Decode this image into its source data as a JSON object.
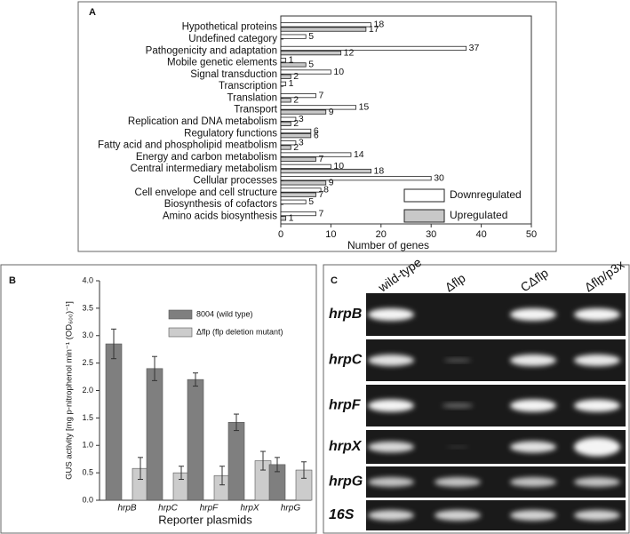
{
  "chart_data": [
    {
      "type": "bar",
      "horizontal": true,
      "panel_label": "A",
      "categories": [
        "Hypothetical proteins",
        "Undefined category",
        "Pathogenicity and adaptation",
        "Mobile genetic elements",
        "Signal transduction",
        "Transcription",
        "Translation",
        "Transport",
        "Replication and DNA metabolism",
        "Regulatory functions",
        "Fatty acid and phospholipid meatbolism",
        "Energy and carbon metabolism",
        "Central intermediary metabolism",
        "Cellular processes",
        "Cell envelope and cell structure",
        "Biosynthesis of cofactors",
        "Amino acids biosynthesis"
      ],
      "series": [
        {
          "name": "Downregulated",
          "color": "#ffffff",
          "values": [
            18,
            5,
            37,
            1,
            10,
            1,
            7,
            15,
            3,
            6,
            3,
            14,
            10,
            30,
            8,
            5,
            7
          ]
        },
        {
          "name": "Upregulated",
          "color": "#c8c8c8",
          "values": [
            17,
            null,
            12,
            5,
            2,
            null,
            2,
            9,
            2,
            6,
            2,
            7,
            18,
            9,
            7,
            null,
            1
          ]
        }
      ],
      "xlabel": "Number of genes",
      "xlim": [
        0,
        50
      ],
      "xticks": [
        0,
        10,
        20,
        30,
        40,
        50
      ],
      "legend": "lower right"
    },
    {
      "type": "bar",
      "horizontal": false,
      "panel_label": "B",
      "categories": [
        "hrpB",
        "hrpC",
        "hrpF",
        "hrpX",
        "hrpG"
      ],
      "series": [
        {
          "name": "8004 (wild type)",
          "color": "#7f7f7f",
          "values": [
            2.85,
            2.4,
            2.2,
            1.42,
            0.65
          ],
          "errors": [
            0.27,
            0.22,
            0.12,
            0.15,
            0.13
          ]
        },
        {
          "name": "Δflp (flp deletion mutant)",
          "color": "#cccccc",
          "values": [
            0.58,
            0.5,
            0.45,
            0.72,
            0.55
          ],
          "errors": [
            0.2,
            0.12,
            0.17,
            0.17,
            0.15
          ]
        }
      ],
      "xlabel": "Reporter plasmids",
      "ylabel": "GUS activity [mg p-nitrophenol min⁻¹ (OD₆₀₀)⁻¹]",
      "ylim": [
        0,
        4
      ],
      "yticks": [
        {
          "value": 0,
          "label": "0.0"
        },
        0.5,
        {
          "value": 1,
          "label": "1.0"
        },
        1.5,
        {
          "value": 2,
          "label": "2.0"
        },
        2.5,
        {
          "value": 3,
          "label": "3.0"
        },
        3.5,
        {
          "value": 4,
          "label": "4.0"
        }
      ],
      "legend": "upper right"
    }
  ],
  "gel": {
    "panel_label": "C",
    "lanes": [
      "wild-type",
      "Δflp",
      "CΔflp",
      "Δflp/p3x"
    ],
    "genes": [
      "hrpB",
      "hrpC",
      "hrpF",
      "hrpX",
      "hrpG",
      "16S"
    ]
  }
}
